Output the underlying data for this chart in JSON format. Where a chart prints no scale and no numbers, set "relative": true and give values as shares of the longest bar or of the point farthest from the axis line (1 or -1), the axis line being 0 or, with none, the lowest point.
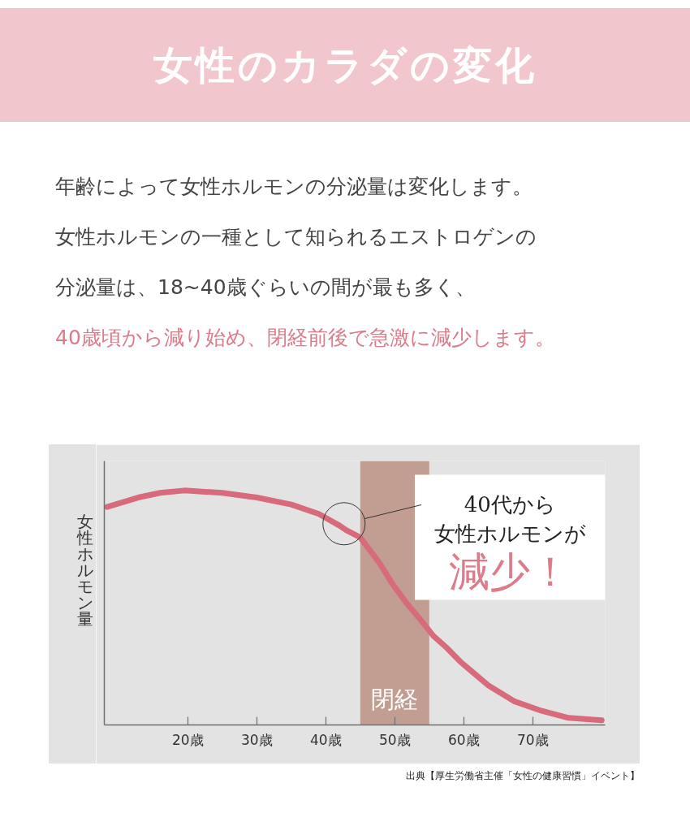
{
  "chart_data": {
    "type": "line",
    "title": "女性のカラダの変化",
    "subtitle": "年齢によって女性ホルモンの分泌量は変化します。",
    "ylabel": "女性ホルモン量",
    "x": [
      8.3,
      12.8,
      16,
      19.5,
      25,
      30,
      35,
      39,
      42,
      43,
      45,
      47.8,
      49.7,
      51.7,
      53.7,
      55.6,
      57.5,
      59.5,
      61.5,
      63.5,
      67.4,
      71.3,
      75.2,
      80
    ],
    "series": [
      {
        "color": "#d76a7b",
        "values": [
          0.93,
          0.97,
          0.99,
          1.0,
          0.99,
          0.97,
          0.94,
          0.9,
          0.85,
          0.83,
          0.8,
          0.69,
          0.6,
          0.52,
          0.45,
          0.38,
          0.33,
          0.27,
          0.22,
          0.17,
          0.1,
          0.06,
          0.03,
          0.02
        ]
      }
    ],
    "relative": true,
    "xlim": [
      7.9,
      80.5
    ],
    "xticks": [
      {
        "value": 20,
        "label": "20歳"
      },
      {
        "value": 30,
        "label": "30歳"
      },
      {
        "value": 40,
        "label": "40歳"
      },
      {
        "value": 50,
        "label": "50歳"
      },
      {
        "value": 60,
        "label": "60歳"
      },
      {
        "value": 70,
        "label": "70歳"
      }
    ],
    "tick_labels": "x",
    "line_style": "solid",
    "bands": [
      {
        "axis": "x",
        "from": 45,
        "to": 55,
        "label": "閉経",
        "color": "#c29e92"
      }
    ],
    "annotations": [
      "女性ホルモンの一種として知られるエストロゲンの",
      "分泌量は、18~40歳ぐらいの間が最も多く、",
      "40歳頃から減り始め、閉経前後で急激に減少します。",
      "40代から",
      "女性ホルモンが",
      "減少！",
      "出典【厚生労働省主催「女性の健康習慣」イベント】"
    ]
  }
}
